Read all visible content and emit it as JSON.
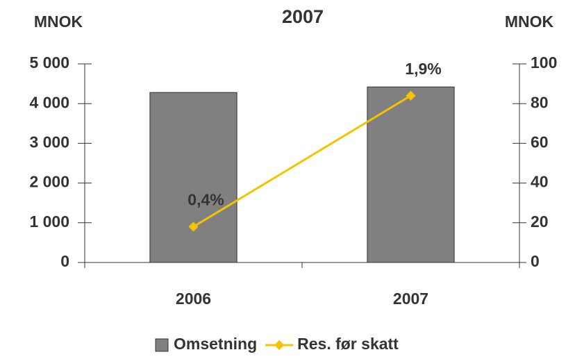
{
  "chart_data": {
    "type": "bar-line",
    "title": "2007",
    "y_label": "MNOK",
    "y2_label": "MNOK",
    "categories": [
      "2006",
      "2007"
    ],
    "series": [
      {
        "name": "Omsetning",
        "type": "bar",
        "color": "#808080",
        "values": [
          4280,
          4420
        ]
      },
      {
        "name": "Res. før skatt",
        "type": "line",
        "color": "#f5c400",
        "axis": "y2",
        "values": [
          18,
          84
        ]
      }
    ],
    "annotations": [
      "0,4%",
      "1,9%"
    ],
    "ylim": [
      0,
      5000
    ],
    "yticks": [
      0,
      {
        "value": 1000,
        "label": "1 000"
      },
      {
        "value": 2000,
        "label": "2 000"
      },
      {
        "value": 3000,
        "label": "3 000"
      },
      {
        "value": 4000,
        "label": "4 000"
      },
      {
        "value": 5000,
        "label": "5 000"
      }
    ],
    "y2lim": [
      0,
      100
    ],
    "y2ticks": [
      0,
      20,
      40,
      60,
      80,
      100
    ],
    "legend": "bottom"
  }
}
